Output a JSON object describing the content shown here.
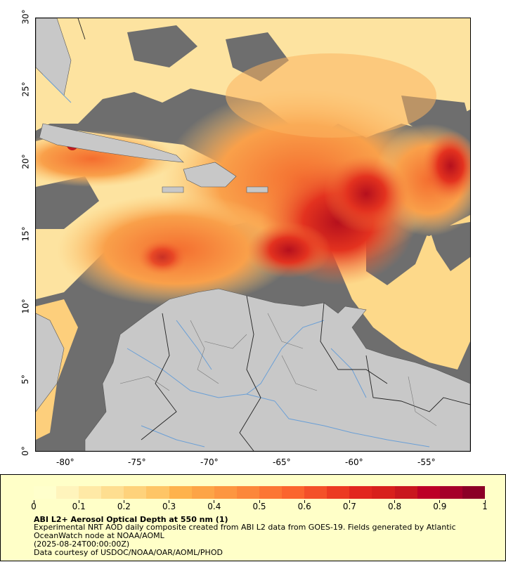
{
  "map": {
    "lon_ticks": [
      "-80°",
      "-75°",
      "-70°",
      "-65°",
      "-60°",
      "-55°"
    ],
    "lat_ticks": [
      "0°",
      "5°",
      "10°",
      "15°",
      "20°",
      "25°",
      "30°"
    ],
    "extent": {
      "lon_min": -82,
      "lon_max": -52,
      "lat_min": 0,
      "lat_max": 30
    },
    "colors": {
      "no_data": "#6e6e6e",
      "land": "#c8c8c8",
      "water_lines": "#6a9fd6",
      "borders": "#000000",
      "aod_low": "#ffe9a6",
      "aod_mid": "#f79347",
      "aod_high": "#d8201c",
      "aod_max": "#8c0026"
    }
  },
  "legend": {
    "ticks": [
      "0",
      "0.1",
      "0.2",
      "0.3",
      "0.4",
      "0.5",
      "0.6",
      "0.7",
      "0.8",
      "0.9",
      "1"
    ],
    "colorbar_stops": [
      "#ffffcc",
      "#fff4bc",
      "#ffe9a6",
      "#fede90",
      "#fed27b",
      "#fec566",
      "#feb24c",
      "#fda446",
      "#fd9640",
      "#fc873a",
      "#fc7634",
      "#fb652e",
      "#f45029",
      "#ec3a22",
      "#e2261f",
      "#d8201c",
      "#c9171e",
      "#bd0026",
      "#a6002a",
      "#8c0026"
    ],
    "title": "ABI L2+ Aerosol Optical Depth at 550 nm (1)",
    "description": "Experimental NRT AOD daily composite created from ABI L2 data from GOES-19. Fields generated by Atlantic OceanWatch node at NOAA/AOML",
    "time": "(2025-08-24T00:00:00Z)",
    "credit": "Data courtesy of USDOC/NOAA/OAR/AOML/PHOD"
  }
}
